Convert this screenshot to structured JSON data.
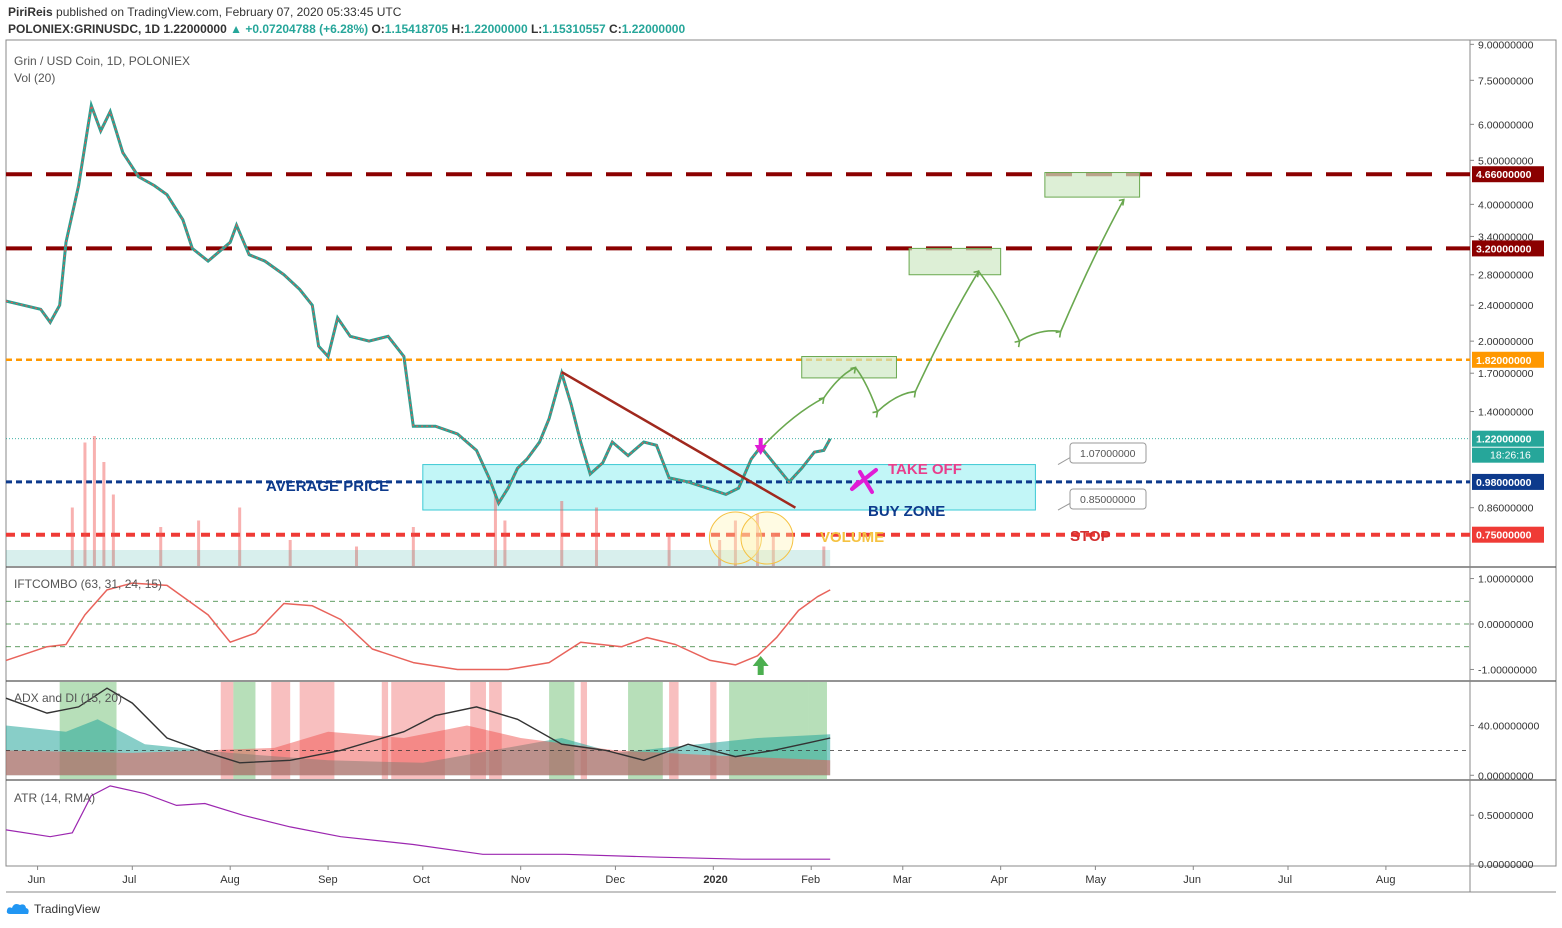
{
  "header": {
    "publisher": "PiriReis",
    "published_text": "published on TradingView.com, February 07, 2020 05:33:45 UTC",
    "symbol": "POLONIEX:GRINUSDC, 1D",
    "last": "1.22000000",
    "change": "+0.07204788 (+6.28%)",
    "o_label": "O:",
    "o": "1.15418705",
    "h_label": "H:",
    "h": "1.22000000",
    "l_label": "L:",
    "l": "1.15310557",
    "c_label": "C:",
    "c": "1.22000000"
  },
  "panes": {
    "main_title": "Grin / USD Coin, 1D, POLONIEX",
    "vol_title": "Vol (20)",
    "ift_title": "IFTCOMBO (63, 31, 24, 15)",
    "adx_title": "ADX and DI (15, 20)",
    "atr_title": "ATR (14, RMA)"
  },
  "colors": {
    "up": "#26a69a",
    "down": "#ef5350",
    "resistance": "#8b0000",
    "orange": "#ff9800",
    "avg": "#0d3a8c",
    "stop": "#ef3b36",
    "zone": "#b7f4f6",
    "ift": "#e8635b",
    "adx": "#333333",
    "atr": "#9c27b0",
    "take_off": "#e83e8c",
    "arrow": "#6aa84f"
  },
  "annotations": {
    "average_price": "AVERAGE PRICE",
    "take_off": "TAKE OFF",
    "buy_zone": "BUY ZONE",
    "volume": "VOLUME",
    "stop": "STOP",
    "callout_upper": "1.07000000",
    "callout_lower": "0.85000000"
  },
  "price_axis": {
    "ticks": [
      "9.00000000",
      "7.50000000",
      "6.00000000",
      "5.00000000",
      "4.00000000",
      "3.40000000",
      "2.80000000",
      "2.40000000",
      "2.00000000",
      "1.70000000",
      "1.40000000",
      "0.86000000"
    ],
    "tick_values": [
      9.0,
      7.5,
      6.0,
      5.0,
      4.0,
      3.4,
      2.8,
      2.4,
      2.0,
      1.7,
      1.4,
      0.86
    ],
    "badges": [
      {
        "text": "4.66000000",
        "value": 4.66,
        "color": "#8b0000"
      },
      {
        "text": "3.20000000",
        "value": 3.2,
        "color": "#8b0000"
      },
      {
        "text": "1.82000000",
        "value": 1.82,
        "color": "#ff9800"
      },
      {
        "text": "1.22000000",
        "value": 1.22,
        "color": "#26a69a"
      },
      {
        "text": "0.98000000",
        "value": 0.98,
        "color": "#0d3a8c"
      },
      {
        "text": "0.75000000",
        "value": 0.75,
        "color": "#ef3b36"
      }
    ],
    "countdown": "18:26:16"
  },
  "ift_axis": {
    "ticks": [
      "1.00000000",
      "0.00000000",
      "-1.00000000"
    ],
    "tick_values": [
      1,
      0,
      -1
    ]
  },
  "adx_axis": {
    "ticks": [
      "40.00000000",
      "0.00000000"
    ],
    "tick_values": [
      40,
      0
    ]
  },
  "atr_axis": {
    "ticks": [
      "0.50000000",
      "0.00000000"
    ],
    "tick_values": [
      0.5,
      0
    ]
  },
  "time_axis": {
    "labels": [
      "Jun",
      "Jul",
      "Aug",
      "Sep",
      "Oct",
      "Nov",
      "Dec",
      "2020",
      "Feb",
      "Mar",
      "Apr",
      "May",
      "Jun",
      "Jul",
      "Aug"
    ],
    "dates": [
      "2019-06-01",
      "2019-07-01",
      "2019-08-01",
      "2019-09-01",
      "2019-10-01",
      "2019-11-01",
      "2019-12-01",
      "2020-01-01",
      "2020-02-01",
      "2020-03-01",
      "2020-04-01",
      "2020-05-01",
      "2020-06-01",
      "2020-07-01",
      "2020-08-01"
    ]
  },
  "chart_data": {
    "type": "line",
    "x_start": "2019-05-22",
    "x_end": "2020-08-27",
    "ylog": true,
    "ylim": [
      0.64,
      9.2
    ],
    "price_path": [
      [
        "2019-05-22",
        2.45
      ],
      [
        "2019-06-02",
        2.35
      ],
      [
        "2019-06-05",
        2.2
      ],
      [
        "2019-06-08",
        2.4
      ],
      [
        "2019-06-10",
        3.3
      ],
      [
        "2019-06-14",
        4.4
      ],
      [
        "2019-06-18",
        6.6
      ],
      [
        "2019-06-21",
        5.8
      ],
      [
        "2019-06-24",
        6.4
      ],
      [
        "2019-06-28",
        5.2
      ],
      [
        "2019-07-03",
        4.6
      ],
      [
        "2019-07-08",
        4.4
      ],
      [
        "2019-07-12",
        4.2
      ],
      [
        "2019-07-17",
        3.7
      ],
      [
        "2019-07-20",
        3.2
      ],
      [
        "2019-07-25",
        3.0
      ],
      [
        "2019-08-01",
        3.3
      ],
      [
        "2019-08-03",
        3.6
      ],
      [
        "2019-08-07",
        3.1
      ],
      [
        "2019-08-12",
        3.0
      ],
      [
        "2019-08-18",
        2.8
      ],
      [
        "2019-08-23",
        2.6
      ],
      [
        "2019-08-27",
        2.4
      ],
      [
        "2019-08-29",
        1.95
      ],
      [
        "2019-09-01",
        1.85
      ],
      [
        "2019-09-04",
        2.25
      ],
      [
        "2019-09-08",
        2.05
      ],
      [
        "2019-09-14",
        2.0
      ],
      [
        "2019-09-20",
        2.05
      ],
      [
        "2019-09-25",
        1.85
      ],
      [
        "2019-09-28",
        1.3
      ],
      [
        "2019-10-05",
        1.3
      ],
      [
        "2019-10-12",
        1.25
      ],
      [
        "2019-10-18",
        1.15
      ],
      [
        "2019-10-22",
        1.0
      ],
      [
        "2019-10-25",
        0.88
      ],
      [
        "2019-10-28",
        0.95
      ],
      [
        "2019-10-31",
        1.05
      ],
      [
        "2019-11-03",
        1.1
      ],
      [
        "2019-11-07",
        1.2
      ],
      [
        "2019-11-10",
        1.35
      ],
      [
        "2019-11-14",
        1.7
      ],
      [
        "2019-11-17",
        1.45
      ],
      [
        "2019-11-20",
        1.2
      ],
      [
        "2019-11-23",
        1.02
      ],
      [
        "2019-11-27",
        1.08
      ],
      [
        "2019-11-30",
        1.2
      ],
      [
        "2019-12-05",
        1.12
      ],
      [
        "2019-12-10",
        1.2
      ],
      [
        "2019-12-14",
        1.18
      ],
      [
        "2019-12-18",
        1.0
      ],
      [
        "2019-12-24",
        0.98
      ],
      [
        "2019-12-30",
        0.95
      ],
      [
        "2020-01-05",
        0.92
      ],
      [
        "2020-01-09",
        0.95
      ],
      [
        "2020-01-13",
        1.1
      ],
      [
        "2020-01-16",
        1.17
      ],
      [
        "2020-01-21",
        1.06
      ],
      [
        "2020-01-25",
        0.98
      ],
      [
        "2020-01-29",
        1.05
      ],
      [
        "2020-02-02",
        1.14
      ],
      [
        "2020-02-05",
        1.15
      ],
      [
        "2020-02-07",
        1.22
      ]
    ],
    "volume_bars": [
      [
        "2019-06-12",
        0.45
      ],
      [
        "2019-06-16",
        0.95
      ],
      [
        "2019-06-19",
        1.0
      ],
      [
        "2019-06-22",
        0.8
      ],
      [
        "2019-06-25",
        0.55
      ],
      [
        "2019-07-10",
        0.3
      ],
      [
        "2019-07-22",
        0.35
      ],
      [
        "2019-08-04",
        0.45
      ],
      [
        "2019-08-20",
        0.2
      ],
      [
        "2019-09-10",
        0.15
      ],
      [
        "2019-09-28",
        0.3
      ],
      [
        "2019-10-24",
        0.55
      ],
      [
        "2019-10-27",
        0.35
      ],
      [
        "2019-11-14",
        0.5
      ],
      [
        "2019-11-25",
        0.45
      ],
      [
        "2019-12-18",
        0.25
      ],
      [
        "2020-01-03",
        0.2
      ],
      [
        "2020-01-08",
        0.35
      ],
      [
        "2020-01-15",
        0.4
      ],
      [
        "2020-01-20",
        0.25
      ],
      [
        "2020-02-05",
        0.15
      ]
    ],
    "ift_combo": [
      [
        "2019-05-22",
        -0.8
      ],
      [
        "2019-06-04",
        -0.5
      ],
      [
        "2019-06-10",
        -0.45
      ],
      [
        "2019-06-16",
        0.2
      ],
      [
        "2019-06-23",
        0.75
      ],
      [
        "2019-07-01",
        0.9
      ],
      [
        "2019-07-12",
        0.85
      ],
      [
        "2019-07-25",
        0.2
      ],
      [
        "2019-08-01",
        -0.4
      ],
      [
        "2019-08-09",
        -0.2
      ],
      [
        "2019-08-18",
        0.45
      ],
      [
        "2019-08-27",
        0.4
      ],
      [
        "2019-09-05",
        0.1
      ],
      [
        "2019-09-15",
        -0.55
      ],
      [
        "2019-09-28",
        -0.85
      ],
      [
        "2019-10-12",
        -1.0
      ],
      [
        "2019-10-28",
        -1.0
      ],
      [
        "2019-11-10",
        -0.85
      ],
      [
        "2019-11-20",
        -0.4
      ],
      [
        "2019-12-03",
        -0.5
      ],
      [
        "2019-12-11",
        -0.3
      ],
      [
        "2019-12-20",
        -0.45
      ],
      [
        "2019-12-31",
        -0.8
      ],
      [
        "2020-01-08",
        -0.9
      ],
      [
        "2020-01-15",
        -0.7
      ],
      [
        "2020-01-21",
        -0.3
      ],
      [
        "2020-01-28",
        0.3
      ],
      [
        "2020-02-03",
        0.6
      ],
      [
        "2020-02-07",
        0.75
      ]
    ],
    "ift_levels": [
      0.5,
      0.0,
      -0.5
    ],
    "adx": [
      [
        "2019-05-22",
        62
      ],
      [
        "2019-06-04",
        50
      ],
      [
        "2019-06-14",
        55
      ],
      [
        "2019-06-23",
        70
      ],
      [
        "2019-07-01",
        58
      ],
      [
        "2019-07-12",
        30
      ],
      [
        "2019-07-25",
        18
      ],
      [
        "2019-08-04",
        10
      ],
      [
        "2019-08-20",
        12
      ],
      [
        "2019-09-05",
        20
      ],
      [
        "2019-09-25",
        35
      ],
      [
        "2019-10-05",
        48
      ],
      [
        "2019-10-18",
        55
      ],
      [
        "2019-10-31",
        45
      ],
      [
        "2019-11-14",
        25
      ],
      [
        "2019-11-28",
        20
      ],
      [
        "2019-12-10",
        12
      ],
      [
        "2019-12-24",
        25
      ],
      [
        "2020-01-08",
        15
      ],
      [
        "2020-01-20",
        20
      ],
      [
        "2020-01-31",
        26
      ],
      [
        "2020-02-07",
        30
      ]
    ],
    "adx_di_plus": [
      [
        "2019-05-22",
        40
      ],
      [
        "2019-06-10",
        35
      ],
      [
        "2019-06-20",
        45
      ],
      [
        "2019-07-05",
        25
      ],
      [
        "2019-08-01",
        18
      ],
      [
        "2019-09-01",
        12
      ],
      [
        "2019-10-01",
        10
      ],
      [
        "2019-11-14",
        30
      ],
      [
        "2019-12-01",
        18
      ],
      [
        "2020-01-15",
        30
      ],
      [
        "2020-02-07",
        33
      ]
    ],
    "adx_di_minus": [
      [
        "2019-05-22",
        20
      ],
      [
        "2019-07-01",
        18
      ],
      [
        "2019-08-15",
        22
      ],
      [
        "2019-09-01",
        35
      ],
      [
        "2019-09-25",
        30
      ],
      [
        "2019-10-15",
        40
      ],
      [
        "2019-11-01",
        30
      ],
      [
        "2019-12-01",
        20
      ],
      [
        "2020-01-01",
        16
      ],
      [
        "2020-02-07",
        12
      ]
    ],
    "adx_threshold": 20,
    "adx_ylim": [
      -3,
      75
    ],
    "atr": [
      [
        "2019-05-22",
        0.35
      ],
      [
        "2019-06-05",
        0.28
      ],
      [
        "2019-06-12",
        0.32
      ],
      [
        "2019-06-18",
        0.7
      ],
      [
        "2019-06-24",
        0.8
      ],
      [
        "2019-07-05",
        0.72
      ],
      [
        "2019-07-15",
        0.6
      ],
      [
        "2019-07-24",
        0.62
      ],
      [
        "2019-08-05",
        0.5
      ],
      [
        "2019-08-20",
        0.38
      ],
      [
        "2019-09-05",
        0.28
      ],
      [
        "2019-09-28",
        0.2
      ],
      [
        "2019-10-20",
        0.1
      ],
      [
        "2019-11-15",
        0.1
      ],
      [
        "2019-12-15",
        0.07
      ],
      [
        "2020-01-10",
        0.05
      ],
      [
        "2020-02-07",
        0.05
      ]
    ],
    "atr_ylim": [
      -0.02,
      0.85
    ],
    "levels": [
      {
        "name": "resistance_1",
        "value": 4.66,
        "style": "dashed"
      },
      {
        "name": "resistance_2",
        "value": 3.2,
        "style": "dashed"
      },
      {
        "name": "orange_level",
        "value": 1.82,
        "style": "dotted"
      },
      {
        "name": "average_price",
        "value": 0.98,
        "style": "dotted"
      },
      {
        "name": "stop",
        "value": 0.75,
        "style": "dotted"
      }
    ],
    "buy_zone": {
      "from_date": "2019-10-01",
      "to_date": "2020-04-12",
      "top": 1.07,
      "bottom": 0.85
    },
    "trendline": {
      "from": [
        "2019-11-14",
        1.71
      ],
      "to": [
        "2020-01-27",
        0.86
      ]
    },
    "target_boxes": [
      {
        "from_date": "2020-01-29",
        "to_date": "2020-02-28",
        "top": 1.85,
        "bottom": 1.66
      },
      {
        "from_date": "2020-03-03",
        "to_date": "2020-04-01",
        "top": 3.2,
        "bottom": 2.8
      },
      {
        "from_date": "2020-04-15",
        "to_date": "2020-05-15",
        "top": 4.7,
        "bottom": 4.15
      }
    ],
    "projection_path": [
      [
        "2020-01-17",
        1.18
      ],
      [
        "2020-02-05",
        1.5
      ],
      [
        "2020-02-15",
        1.75
      ],
      [
        "2020-02-22",
        1.4
      ],
      [
        "2020-03-05",
        1.55
      ],
      [
        "2020-03-25",
        2.85
      ],
      [
        "2020-04-07",
        2.0
      ],
      [
        "2020-04-20",
        2.1
      ],
      [
        "2020-05-10",
        4.1
      ]
    ]
  }
}
